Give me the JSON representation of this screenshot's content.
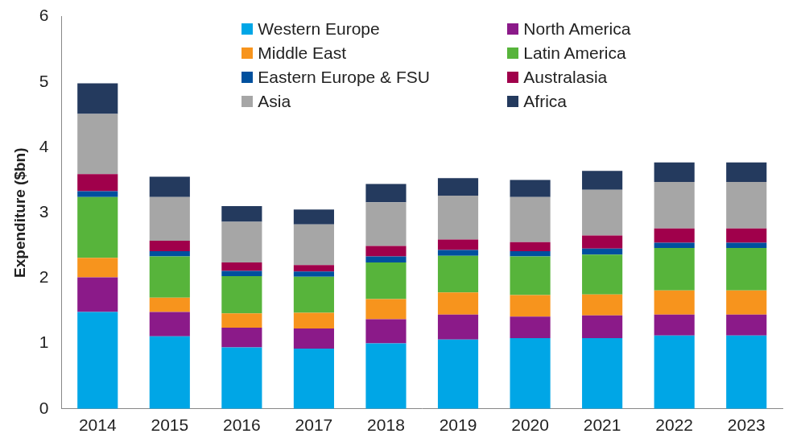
{
  "chart_data": {
    "type": "bar",
    "stacked": true,
    "grid": false,
    "legend": "top",
    "y_label": "Expenditure ($bn)",
    "categories": [
      "2014",
      "2015",
      "2016",
      "2017",
      "2018",
      "2019",
      "2020",
      "2021",
      "2022",
      "2023"
    ],
    "ylim": [
      0,
      6
    ],
    "yticks": [
      0,
      1,
      2,
      3,
      4,
      5,
      6
    ],
    "series": [
      {
        "name": "Western Europe",
        "color": "#00a6e6",
        "values": [
          1.48,
          1.11,
          0.94,
          0.92,
          1.0,
          1.06,
          1.08,
          1.08,
          1.12,
          1.12
        ]
      },
      {
        "name": "North America",
        "color": "#8b1a89",
        "values": [
          0.53,
          0.37,
          0.3,
          0.31,
          0.37,
          0.38,
          0.33,
          0.35,
          0.32,
          0.32
        ]
      },
      {
        "name": "Middle East",
        "color": "#f7941d",
        "values": [
          0.3,
          0.22,
          0.22,
          0.24,
          0.31,
          0.34,
          0.33,
          0.32,
          0.37,
          0.37
        ]
      },
      {
        "name": "Latin America",
        "color": "#57b43b",
        "values": [
          0.93,
          0.63,
          0.57,
          0.55,
          0.56,
          0.56,
          0.59,
          0.61,
          0.65,
          0.65
        ]
      },
      {
        "name": "Eastern Europe & FSU",
        "color": "#00509e",
        "values": [
          0.09,
          0.08,
          0.08,
          0.08,
          0.09,
          0.09,
          0.08,
          0.09,
          0.08,
          0.08
        ]
      },
      {
        "name": "Australasia",
        "color": "#a0004b",
        "values": [
          0.26,
          0.16,
          0.13,
          0.1,
          0.16,
          0.16,
          0.14,
          0.2,
          0.22,
          0.22
        ]
      },
      {
        "name": "Asia",
        "color": "#a6a6a6",
        "values": [
          0.92,
          0.67,
          0.62,
          0.62,
          0.67,
          0.67,
          0.69,
          0.7,
          0.71,
          0.71
        ]
      },
      {
        "name": "Africa",
        "color": "#243a5e",
        "values": [
          0.47,
          0.31,
          0.24,
          0.23,
          0.28,
          0.27,
          0.26,
          0.29,
          0.3,
          0.3
        ]
      }
    ]
  }
}
